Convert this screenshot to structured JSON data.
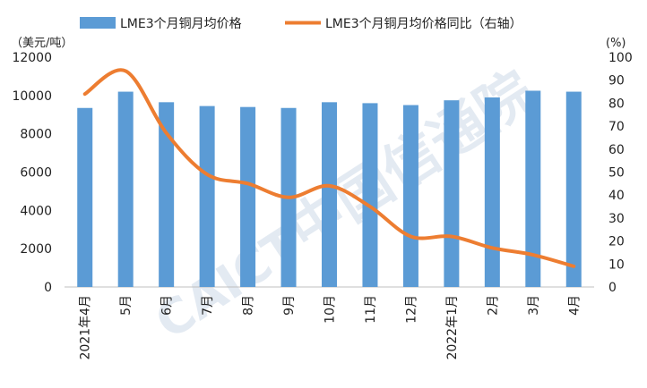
{
  "chart_data": {
    "type": "bar+line",
    "title": "",
    "categories": [
      "2021年4月",
      "5月",
      "6月",
      "7月",
      "8月",
      "9月",
      "10月",
      "11月",
      "12月",
      "2022年1月",
      "2月",
      "3月",
      "4月"
    ],
    "series": [
      {
        "name": "LME3个月铜月均价格",
        "type": "bar",
        "axis": "left",
        "color": "#5b9bd5",
        "values": [
          9350,
          10200,
          9650,
          9450,
          9400,
          9350,
          9650,
          9600,
          9500,
          9750,
          9900,
          10250,
          10200
        ]
      },
      {
        "name": "LME3个月铜月均价格同比（右轴）",
        "type": "line",
        "axis": "right",
        "color": "#ed7d31",
        "values": [
          84,
          94,
          67,
          49,
          45,
          39,
          44,
          35,
          22,
          22,
          17,
          14,
          9
        ]
      }
    ],
    "y_left": {
      "unit": "（美元/吨）",
      "min": 0,
      "max": 12000,
      "ticks": [
        "0",
        "2000",
        "4000",
        "6000",
        "8000",
        "10000",
        "12000"
      ]
    },
    "y_right": {
      "unit": "(%)",
      "min": 0,
      "max": 100,
      "ticks": [
        "0",
        "10",
        "20",
        "30",
        "40",
        "50",
        "60",
        "70",
        "80",
        "90",
        "100"
      ]
    },
    "legend_position": "top",
    "grid": false
  },
  "watermark": {
    "latin": "CAICT",
    "chinese": "中国信通院"
  }
}
